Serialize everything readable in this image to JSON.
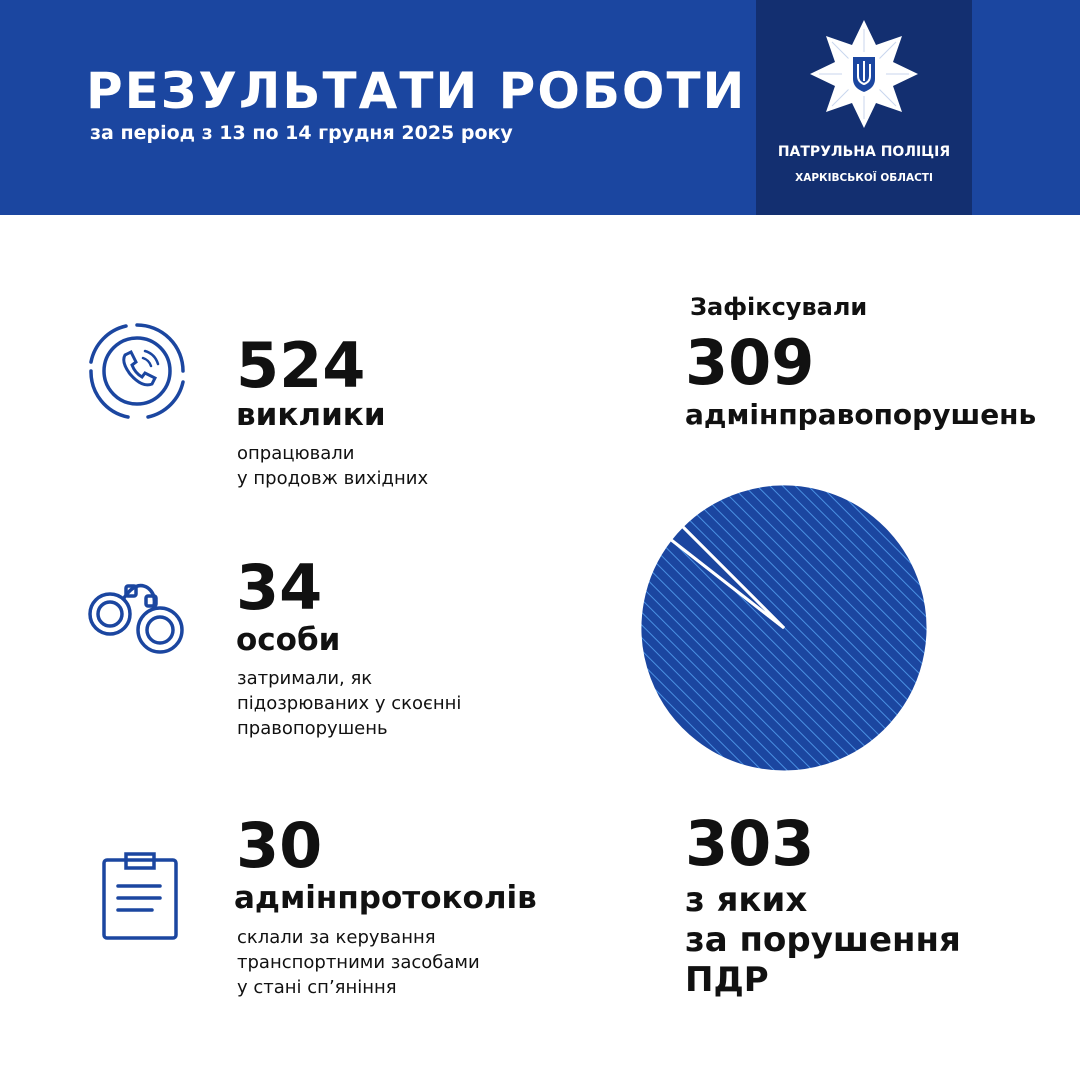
{
  "header": {
    "title": "РЕЗУЛЬТАТИ РОБОТИ",
    "subtitle": "за період з 13 по 14 грудня 2025 року",
    "logo": {
      "line1": "ПАТРУЛЬНА ПОЛІЦІЯ",
      "line2": "ХАРКІВСЬКОЇ ОБЛАСТІ",
      "icon": "police-star-trident-emblem"
    }
  },
  "colors": {
    "brand_blue": "#1b46a0",
    "dark_blue": "#132f70",
    "hatch": "#4a90e2"
  },
  "stats": [
    {
      "icon": "phone-call-icon",
      "number": "524",
      "label": "виклики",
      "desc": [
        "опрацювали",
        "у продовж вихідних"
      ]
    },
    {
      "icon": "handcuffs-icon",
      "number": "34",
      "label": "особи",
      "desc": [
        "затримали, як",
        "підозрюваних у скоєнні",
        "правопорушень"
      ]
    },
    {
      "icon": "clipboard-icon",
      "number": "30",
      "label": "адмінпротоколів",
      "desc": [
        "склали за керування",
        "транспортними засобами",
        "у стані сп’яніння"
      ]
    }
  ],
  "right": {
    "intro": "Зафіксували",
    "total_number": "309",
    "total_label": "адмінправопорушень",
    "part_number": "303",
    "part_label": [
      "з яких",
      "за порушення",
      "ПДР"
    ]
  },
  "chart_data": {
    "type": "pie",
    "total": 309,
    "highlighted": 303,
    "slices": [
      {
        "value": 303,
        "style": "hatched"
      },
      {
        "value": 6,
        "style": "solid"
      }
    ]
  }
}
